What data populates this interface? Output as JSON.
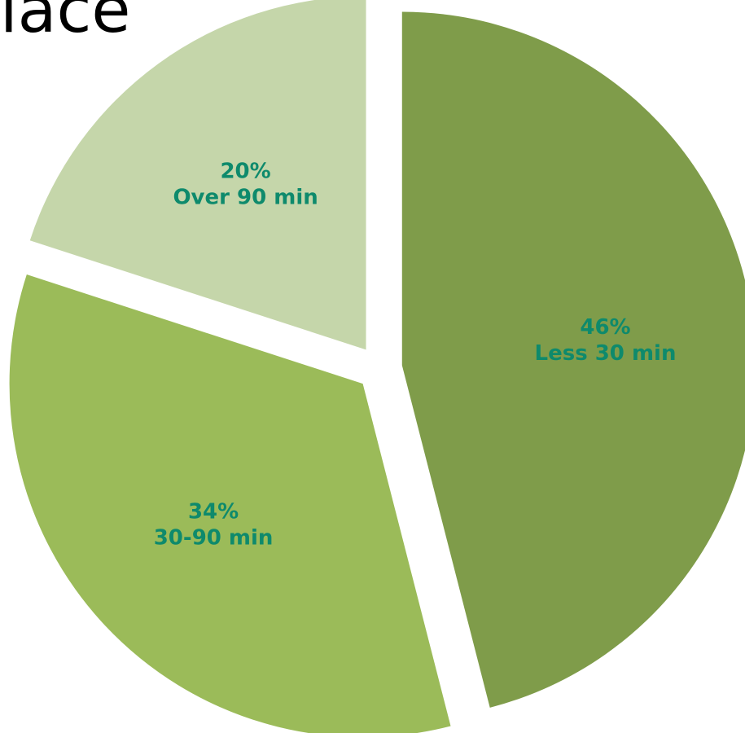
{
  "page": {
    "title_fragment": "lace"
  },
  "chart_data": {
    "type": "pie",
    "title": "",
    "exploded": true,
    "start_angle_deg": 0,
    "direction": "clockwise",
    "label_color": "#0e8a6c",
    "slices": [
      {
        "label": "Less 30 min",
        "value": 46,
        "value_label": "46%",
        "color": "#7f9c4a"
      },
      {
        "label": "30-90 min",
        "value": 34,
        "value_label": "34%",
        "color": "#9bbb59"
      },
      {
        "label": "Over 90 min",
        "value": 20,
        "value_label": "20%",
        "color": "#c5d6aa"
      }
    ]
  }
}
